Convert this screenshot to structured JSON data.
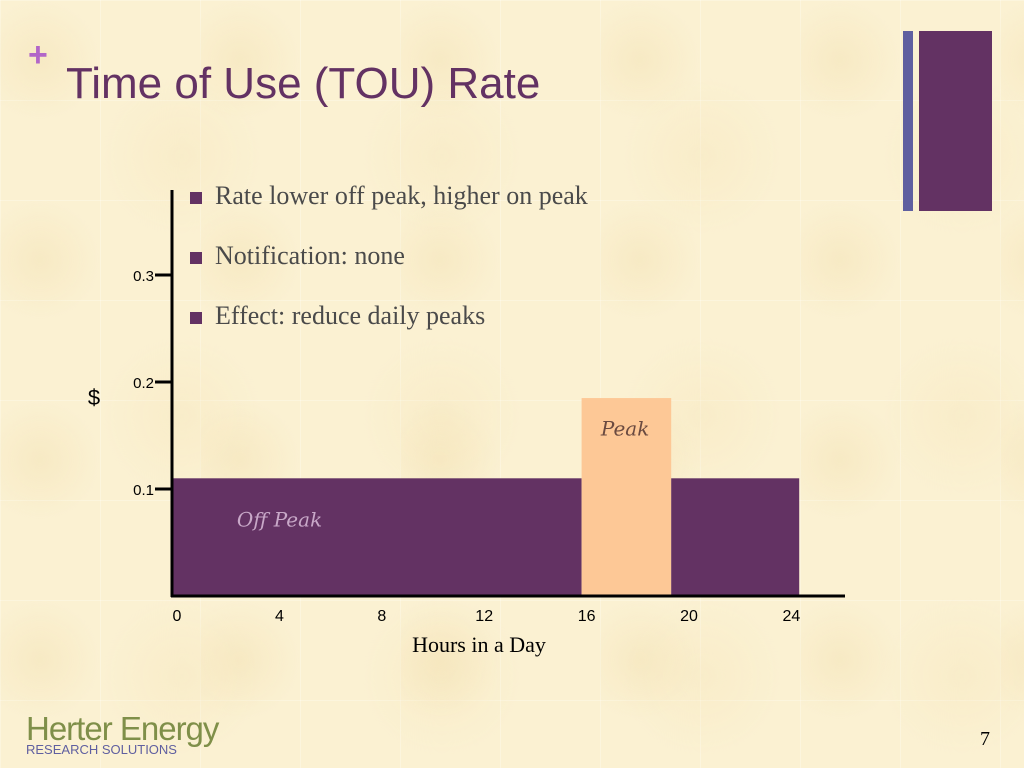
{
  "slide": {
    "plus_sign": "+",
    "title": "Time of Use (TOU) Rate",
    "bullets": [
      "Rate lower off peak, higher on peak",
      "Notification: none",
      "Effect: reduce daily peaks"
    ],
    "logo": {
      "main": "Herter Energy",
      "sub": "RESEARCH SOLUTIONS"
    },
    "page_number": "7"
  },
  "colors": {
    "title": "#633263",
    "plus": "#b266c8",
    "off_peak": "#633263",
    "peak": "#fdc896",
    "deco_thin": "#5f5fa0",
    "deco_wide": "#633263",
    "logo_green": "#7f8f49",
    "logo_blue": "#5f5fa0"
  },
  "chart_data": {
    "type": "area",
    "xlabel": "Hours in a Day",
    "ylabel": "$",
    "x_ticks": [
      0,
      4,
      8,
      12,
      16,
      20,
      24
    ],
    "y_ticks": [
      0.1,
      0.2,
      0.3
    ],
    "y_tick_labels": [
      "0.1",
      "0.2",
      "0.3"
    ],
    "xlim": [
      0,
      26
    ],
    "ylim": [
      0,
      0.32
    ],
    "periods": [
      {
        "name": "Off Peak",
        "start": 0,
        "end": 16,
        "rate": 0.11
      },
      {
        "name": "Peak",
        "start": 16,
        "end": 19.5,
        "rate": 0.185
      },
      {
        "name": "",
        "start": 19.5,
        "end": 24.5,
        "rate": 0.11
      }
    ],
    "annotations": [
      {
        "text": "Off Peak",
        "x": 4.2,
        "y": 0.065
      },
      {
        "text": "Peak",
        "x": 17.7,
        "y": 0.15
      }
    ]
  }
}
